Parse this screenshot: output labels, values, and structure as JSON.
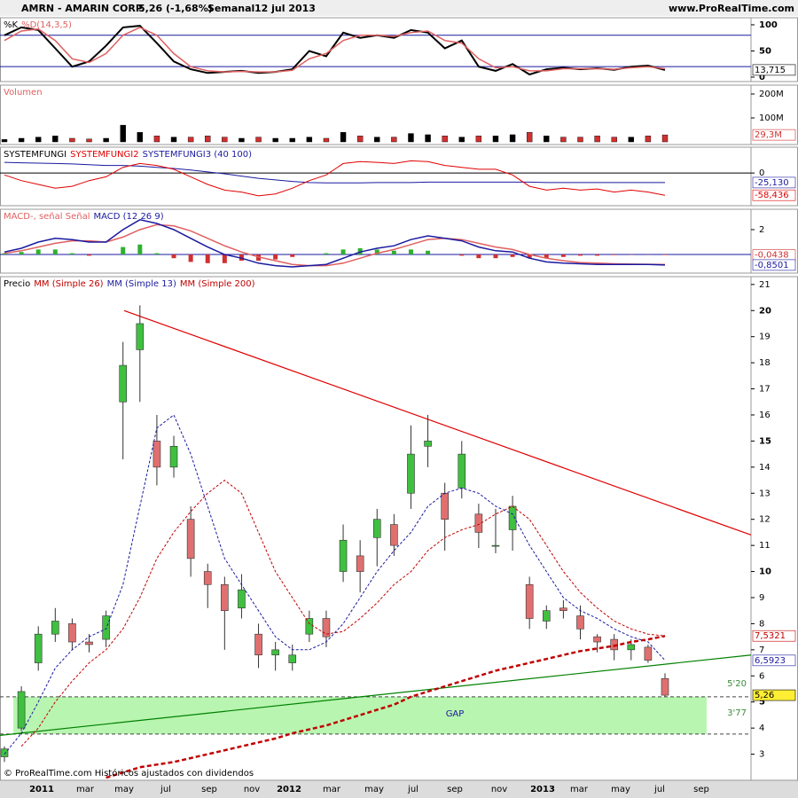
{
  "header": {
    "symbol": "AMRN - AMARIN CORP.",
    "quote": "5,26 (-1,68%)",
    "period": "Semanal",
    "date": "12 jul 2013",
    "site": "www.ProRealTime.com"
  },
  "footer": "© ProRealTime.com Históricos ajustados con dividendos",
  "xtick_labels": [
    "2011",
    "mar",
    "may",
    "jul",
    "sep",
    "nov",
    "2012",
    "mar",
    "may",
    "jul",
    "sep",
    "nov",
    "2013",
    "mar",
    "may",
    "jul",
    "sep"
  ],
  "chart_data": [
    {
      "type": "line",
      "legend": [
        {
          "text": "%K",
          "color": "#000000"
        },
        {
          "text": "%D(14,3,5)",
          "color": "#e06060"
        }
      ],
      "ylim": [
        -8.5,
        113.5
      ],
      "yticks": [
        100,
        50,
        0
      ],
      "levels": [
        80,
        20
      ],
      "level_color": "#1a1aa0",
      "series": [
        {
          "color": "#000000",
          "width": 2,
          "values": [
            80,
            95,
            90,
            55,
            20,
            30,
            60,
            95,
            98,
            65,
            30,
            15,
            8,
            10,
            12,
            8,
            10,
            15,
            50,
            40,
            85,
            75,
            80,
            75,
            90,
            85,
            55,
            70,
            20,
            12,
            25,
            5,
            15,
            18,
            15,
            17,
            14,
            20,
            22,
            13.715
          ],
          "last_value_label": "13,715"
        },
        {
          "color": "#e06060",
          "width": 1.5,
          "values": [
            70,
            88,
            92,
            70,
            35,
            28,
            45,
            80,
            95,
            80,
            45,
            20,
            12,
            10,
            11,
            10,
            10,
            13,
            35,
            45,
            70,
            80,
            80,
            78,
            85,
            88,
            70,
            65,
            35,
            18,
            20,
            12,
            12,
            16,
            16,
            16,
            15,
            18,
            20,
            16
          ]
        }
      ]
    },
    {
      "type": "bar",
      "legend": [
        {
          "text": "Volumen",
          "color": "#e06060"
        }
      ],
      "ylim": [
        -11,
        237
      ],
      "yticks": [
        {
          "value": 200,
          "label": "200M"
        },
        {
          "value": 100,
          "label": "100M"
        }
      ],
      "series": [
        {
          "color": "#d03030",
          "up_color": "#000000",
          "values": [
            10,
            15,
            20,
            25,
            15,
            12,
            15,
            70,
            40,
            25,
            20,
            20,
            25,
            20,
            15,
            20,
            15,
            15,
            20,
            15,
            40,
            25,
            20,
            20,
            35,
            30,
            25,
            20,
            25,
            25,
            30,
            40,
            25,
            20,
            20,
            25,
            20,
            20,
            25,
            29.3
          ],
          "last_value_label": "29,3M"
        }
      ]
    },
    {
      "type": "line",
      "legend": [
        {
          "text": "SYSTEMFUNGI",
          "color": "#000000"
        },
        {
          "text": "SYSTEMFUNGI2",
          "color": "#e00000"
        },
        {
          "text": "SYSTEMFUNGI3 (40 100)",
          "color": "#1a1aa0"
        }
      ],
      "ylim": [
        -86,
        68
      ],
      "yticks": [
        0
      ],
      "levels": [
        0
      ],
      "level_color": "#000000",
      "series": [
        {
          "color": "#1a1aa0",
          "width": 1,
          "values": [
            28,
            27,
            26,
            25,
            24,
            22,
            20,
            20,
            18,
            15,
            12,
            8,
            3,
            -2,
            -8,
            -14,
            -18,
            -22,
            -25,
            -26,
            -26,
            -26,
            -25,
            -25,
            -25,
            -24,
            -24,
            -24,
            -24,
            -24,
            -24,
            -24,
            -25,
            -25,
            -25,
            -25,
            -25,
            -25,
            -25,
            -25.13
          ],
          "last_value_label": "-25,130"
        },
        {
          "color": "#e00000",
          "width": 1,
          "values": [
            -5,
            -20,
            -30,
            -40,
            -35,
            -20,
            -10,
            15,
            25,
            20,
            10,
            -10,
            -30,
            -45,
            -50,
            -60,
            -55,
            -40,
            -20,
            -5,
            25,
            30,
            28,
            25,
            32,
            30,
            20,
            15,
            10,
            10,
            -5,
            -35,
            -45,
            -40,
            -45,
            -42,
            -50,
            -45,
            -50,
            -58.436
          ],
          "last_value_label": "-58,436"
        }
      ]
    },
    {
      "type": "line",
      "legend": [
        {
          "text": "MACD-, señal Señal",
          "color": "#e06060"
        },
        {
          "text": "MACD (12 26 9)",
          "color": "#1a1aa0"
        }
      ],
      "ylim": [
        -1.5,
        3.64
      ],
      "yticks": [
        2
      ],
      "levels": [
        0
      ],
      "level_color": "#1a1aa0",
      "series": [
        {
          "style": "histogram",
          "pos_color": "#30b030",
          "neg_color": "#d03030",
          "values": [
            0.1,
            0.2,
            0.4,
            0.4,
            0.1,
            -0.1,
            0.0,
            0.6,
            0.8,
            0.1,
            -0.3,
            -0.6,
            -0.7,
            -0.7,
            -0.5,
            -0.5,
            -0.4,
            -0.2,
            0.0,
            0.1,
            0.4,
            0.5,
            0.4,
            0.3,
            0.4,
            0.3,
            0.0,
            -0.1,
            -0.3,
            -0.3,
            -0.2,
            -0.3,
            -0.3,
            -0.2,
            -0.1,
            -0.1,
            -0.05,
            -0.02,
            -0.01,
            -0.0438
          ],
          "color": "#d03030",
          "last_value_label": "-0,0438"
        },
        {
          "color": "#e06060",
          "width": 1.5,
          "values": [
            0.1,
            0.3,
            0.6,
            0.9,
            1.1,
            1.1,
            1.0,
            1.4,
            2.0,
            2.4,
            2.3,
            1.9,
            1.3,
            0.7,
            0.2,
            -0.2,
            -0.5,
            -0.8,
            -0.9,
            -0.9,
            -0.7,
            -0.3,
            0.1,
            0.4,
            0.8,
            1.2,
            1.3,
            1.2,
            0.9,
            0.6,
            0.4,
            0.0,
            -0.3,
            -0.5,
            -0.65,
            -0.7,
            -0.75,
            -0.78,
            -0.79,
            -0.81
          ]
        },
        {
          "color": "#1a1aa0",
          "width": 1.5,
          "values": [
            0.2,
            0.5,
            1.0,
            1.3,
            1.2,
            1.0,
            1.0,
            2.0,
            2.8,
            2.5,
            2.0,
            1.3,
            0.6,
            0.0,
            -0.3,
            -0.7,
            -0.9,
            -1.0,
            -0.9,
            -0.8,
            -0.3,
            0.2,
            0.5,
            0.7,
            1.2,
            1.5,
            1.3,
            1.1,
            0.6,
            0.3,
            0.2,
            -0.3,
            -0.6,
            -0.7,
            -0.75,
            -0.8,
            -0.8,
            -0.8,
            -0.8,
            -0.8501
          ],
          "last_value_label": "-0,8501"
        }
      ]
    },
    {
      "type": "candlestick",
      "legend": [
        {
          "text": "Precio",
          "color": "#000000"
        },
        {
          "text": "MM (Simple 26)",
          "color": "#c00000"
        },
        {
          "text": "MM (Simple 13)",
          "color": "#1a1aa0"
        },
        {
          "text": "MM (Simple 200)",
          "color": "#c00000"
        }
      ],
      "ylim": [
        2,
        21.3
      ],
      "yticks": [
        3,
        4,
        5,
        6,
        7,
        8,
        9,
        10,
        11,
        12,
        13,
        14,
        15,
        16,
        17,
        18,
        19,
        20,
        21
      ],
      "up_color": "#40c040",
      "down_color": "#e07070",
      "open": [
        2.9,
        4.0,
        6.5,
        7.6,
        8.0,
        7.3,
        7.4,
        16.5,
        18.5,
        15.0,
        14.0,
        12.0,
        10.0,
        9.5,
        8.6,
        7.6,
        6.8,
        6.5,
        7.6,
        8.2,
        10.0,
        10.6,
        11.3,
        11.8,
        13.0,
        14.8,
        13.0,
        13.2,
        12.2,
        11.0,
        11.6,
        9.5,
        8.1,
        8.6,
        8.3,
        7.5,
        7.4,
        7.0,
        7.1,
        5.9
      ],
      "high": [
        3.3,
        5.6,
        7.9,
        8.6,
        8.2,
        7.6,
        8.5,
        18.8,
        20.2,
        16.0,
        15.2,
        12.5,
        10.3,
        9.8,
        9.9,
        8.0,
        7.3,
        7.2,
        8.5,
        8.5,
        11.8,
        11.2,
        12.4,
        12.2,
        15.6,
        16.0,
        13.4,
        15.0,
        12.6,
        12.4,
        12.9,
        9.8,
        8.7,
        8.9,
        8.7,
        7.6,
        7.6,
        7.4,
        7.2,
        6.1
      ],
      "low": [
        2.7,
        3.9,
        6.2,
        7.3,
        7.0,
        6.9,
        7.1,
        14.3,
        16.5,
        13.3,
        13.6,
        9.8,
        8.6,
        7.0,
        8.2,
        6.3,
        6.2,
        6.2,
        7.3,
        7.1,
        9.6,
        9.2,
        10.2,
        10.6,
        12.4,
        14.0,
        10.8,
        12.8,
        10.9,
        10.7,
        10.8,
        7.8,
        7.8,
        8.2,
        7.4,
        6.9,
        6.6,
        6.6,
        6.5,
        5.2
      ],
      "close": [
        3.2,
        5.4,
        7.6,
        8.1,
        7.3,
        7.2,
        8.3,
        17.9,
        19.5,
        14.0,
        14.8,
        10.5,
        9.5,
        8.5,
        9.3,
        6.8,
        7.0,
        6.8,
        8.2,
        7.5,
        11.2,
        10.0,
        12.0,
        11.0,
        14.5,
        15.0,
        12.0,
        14.5,
        11.5,
        11.0,
        12.5,
        8.2,
        8.5,
        8.5,
        7.8,
        7.3,
        7.0,
        7.2,
        6.6,
        5.26
      ],
      "close_label": "5,26",
      "series": [
        {
          "color": "#c00000",
          "width": 1,
          "dash": "3 2",
          "values": [
            null,
            3.3,
            4.0,
            5.0,
            5.8,
            6.5,
            7.0,
            7.8,
            9.0,
            10.5,
            11.5,
            12.3,
            13.0,
            13.5,
            13.0,
            11.5,
            10.0,
            9.0,
            8.0,
            7.6,
            7.7,
            8.2,
            8.8,
            9.5,
            10.0,
            10.8,
            11.3,
            11.6,
            11.8,
            12.2,
            12.5,
            12.0,
            11.0,
            10.0,
            9.2,
            8.6,
            8.1,
            7.8,
            7.6,
            7.5321
          ],
          "last_value_label": "7,5321"
        },
        {
          "color": "#1a1aa0",
          "width": 1,
          "dash": "3 2",
          "values": [
            3.0,
            3.8,
            5.0,
            6.3,
            7.0,
            7.5,
            7.8,
            9.5,
            12.5,
            15.5,
            16.0,
            14.5,
            12.5,
            10.5,
            9.5,
            8.5,
            7.5,
            7.0,
            7.0,
            7.3,
            8.0,
            9.0,
            10.0,
            10.8,
            11.5,
            12.5,
            13.0,
            13.2,
            13.0,
            12.5,
            12.2,
            11.0,
            10.0,
            9.0,
            8.5,
            8.2,
            7.8,
            7.5,
            7.3,
            6.5923
          ],
          "last_value_label": "6,5923"
        },
        {
          "color": "#c00000",
          "width": 2.5,
          "dash": "5 3",
          "values": [
            null,
            null,
            null,
            null,
            null,
            null,
            2.1,
            2.3,
            2.5,
            2.6,
            2.7,
            2.85,
            3.0,
            3.15,
            3.3,
            3.45,
            3.6,
            3.8,
            3.95,
            4.1,
            4.3,
            4.5,
            4.7,
            4.9,
            5.2,
            5.4,
            5.6,
            5.8,
            6.0,
            6.2,
            6.35,
            6.5,
            6.65,
            6.8,
            6.95,
            7.05,
            7.15,
            7.3,
            7.4,
            7.53
          ]
        }
      ],
      "trendlines": [
        {
          "start": 20,
          "end": 11.4,
          "color": "#e00000"
        },
        {
          "start": 3.72,
          "end": 6.8,
          "color": "#008000"
        }
      ],
      "zone": {
        "low": 3.77,
        "high": 5.2,
        "label": "GAP",
        "low_label": "3'77",
        "high_label": "5'20",
        "color": "#b8f5b0"
      }
    }
  ]
}
